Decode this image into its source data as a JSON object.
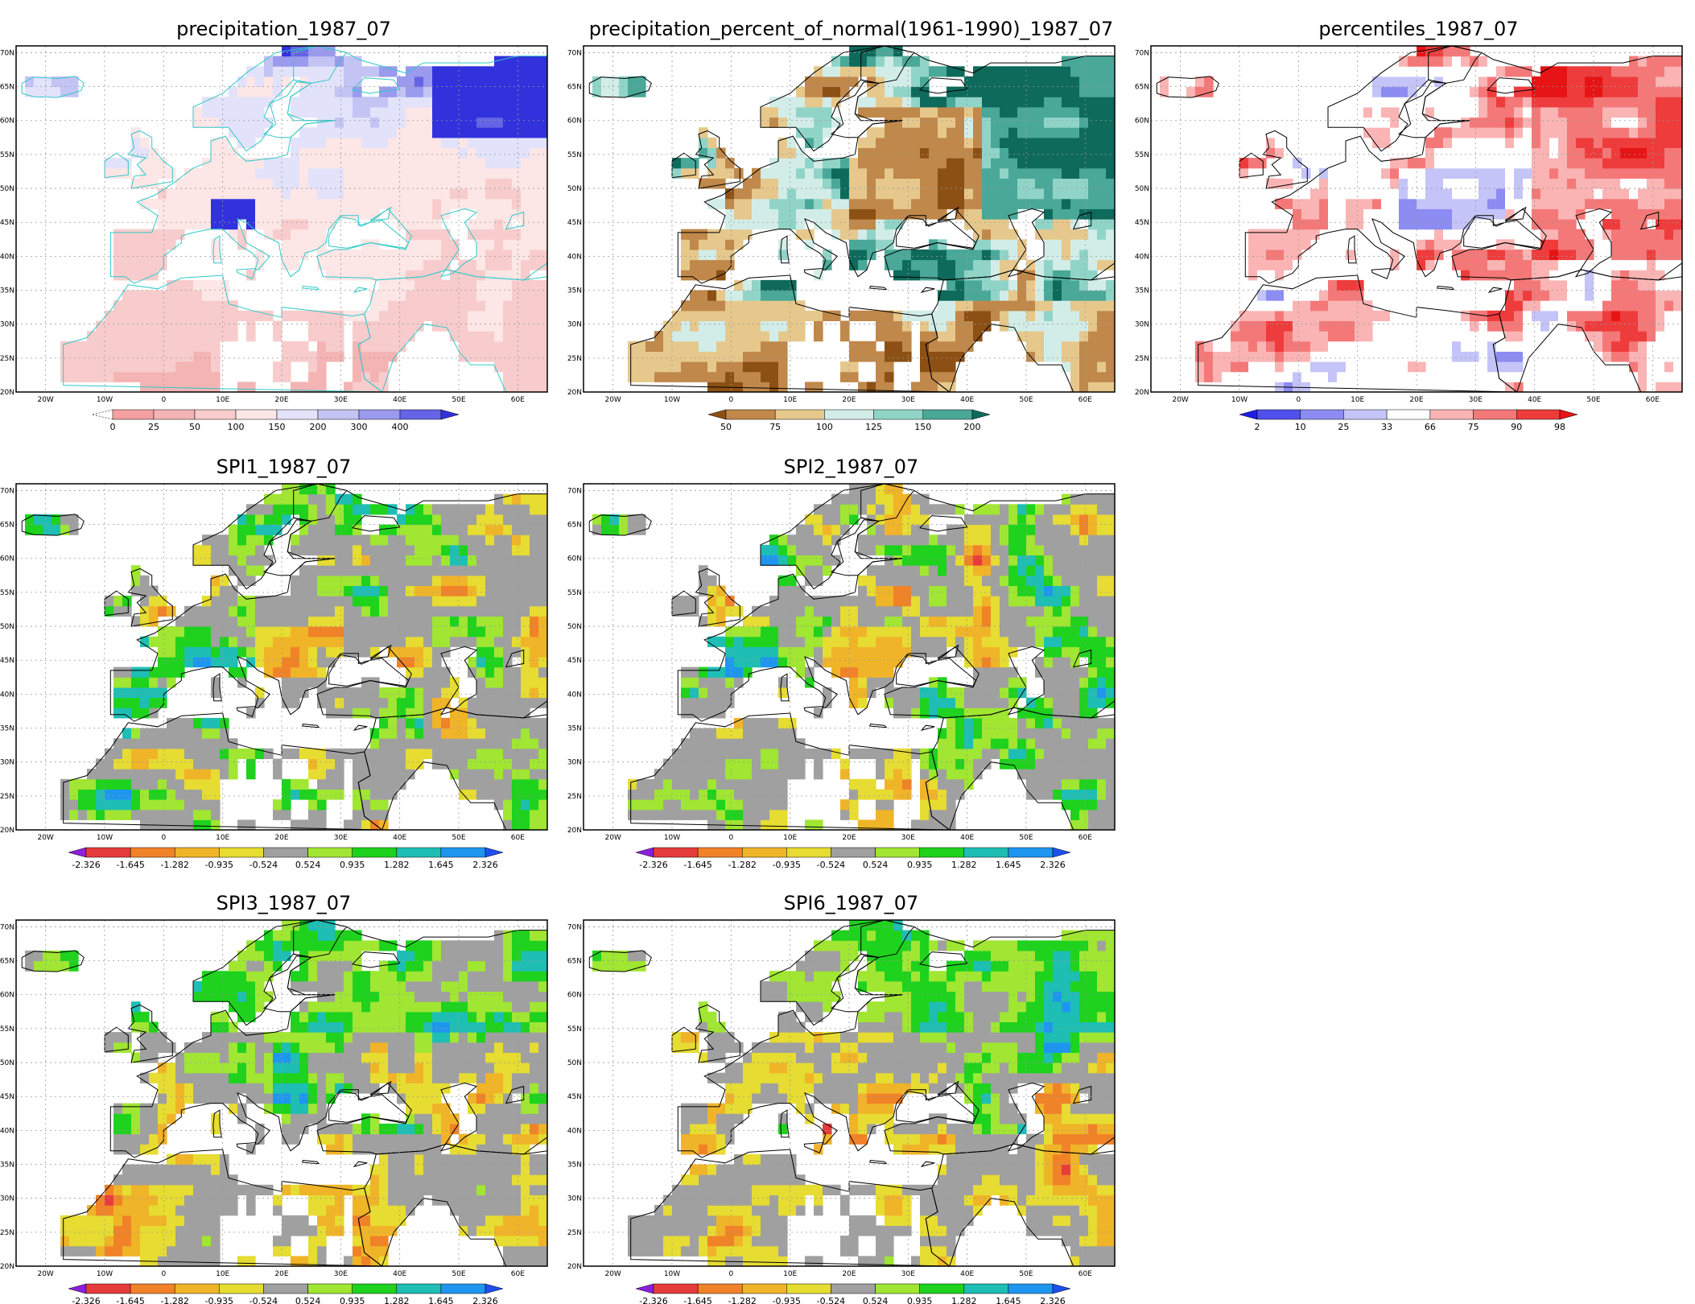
{
  "lon_labels": [
    "20W",
    "10W",
    "0",
    "10E",
    "20E",
    "30E",
    "40E",
    "50E",
    "60E"
  ],
  "lat_labels": [
    "70N",
    "65N",
    "60N",
    "55N",
    "50N",
    "45N",
    "40N",
    "35N",
    "30N",
    "25N",
    "20N"
  ],
  "panels": [
    {
      "id": "precip",
      "title": "precipitation_1987_07",
      "colors": [
        "#ffffff",
        "#f4b4b4",
        "#f8cccc",
        "#fce6e6",
        "#e2e2fa",
        "#c4c4f4",
        "#9a9aee",
        "#6464e6",
        "#3232dc"
      ],
      "colorbar": {
        "labels": [
          "0",
          "25",
          "50",
          "100",
          "150",
          "200",
          "300",
          "400"
        ],
        "colors": [
          "#f4a0a0",
          "#f4b4b4",
          "#f8cccc",
          "#fce6e6",
          "#e2e2fa",
          "#c4c4f4",
          "#9a9aee",
          "#6464e6",
          "#3232dc"
        ],
        "left_arrow": false,
        "right_arrow": true
      },
      "border_color": "#30c8c8",
      "field": {
        "type": "precip"
      }
    },
    {
      "id": "pct",
      "title": "precipitation_percent_of_normal(1961-1990)_1987_07",
      "colors": [
        "#8c5014",
        "#c0884a",
        "#e6c88c",
        "#d2ede8",
        "#90d4c8",
        "#4aa898",
        "#0e6a5a"
      ],
      "colorbar": {
        "labels": [
          "50",
          "75",
          "100",
          "125",
          "150",
          "200"
        ],
        "colors": [
          "#8c5014",
          "#c0884a",
          "#e6c88c",
          "#d2ede8",
          "#90d4c8",
          "#4aa898",
          "#0e6a5a"
        ],
        "left_arrow": true,
        "right_arrow": true
      },
      "border_color": "#000000",
      "field": {
        "type": "pct"
      }
    },
    {
      "id": "pctl",
      "title": "percentiles_1987_07",
      "colors": [
        "#1e1ee6",
        "#5050ec",
        "#8c8cf2",
        "#c4c4f8",
        "#ffffff",
        "#fab4b4",
        "#f47878",
        "#ee3c3c",
        "#e61414"
      ],
      "colorbar": {
        "labels": [
          "2",
          "10",
          "25",
          "33",
          "66",
          "75",
          "90",
          "98"
        ],
        "colors": [
          "#1e1ee6",
          "#5050ec",
          "#8c8cf2",
          "#c4c4f8",
          "#ffffff",
          "#fab4b4",
          "#f47878",
          "#ee3c3c",
          "#e61414"
        ],
        "left_arrow": true,
        "right_arrow": true
      },
      "border_color": "#000000",
      "field": {
        "type": "pctl"
      }
    },
    {
      "id": "spi1",
      "title": "SPI1_1987_07",
      "colors": [
        "#8c1ede",
        "#e63c3c",
        "#f08228",
        "#f0b428",
        "#e6dc32",
        "#a0a0a0",
        "#a0e632",
        "#1ed21e",
        "#1ebeb4",
        "#1e96f0",
        "#1e50f0"
      ],
      "colorbar": {
        "labels": [
          "-2.326",
          "-1.645",
          "-1.282",
          "-0.935",
          "-0.524",
          "0.524",
          "0.935",
          "1.282",
          "1.645",
          "2.326"
        ],
        "colors": [
          "#8c1ede",
          "#e63c3c",
          "#f08228",
          "#f0b428",
          "#e6dc32",
          "#a0a0a0",
          "#a0e632",
          "#1ed21e",
          "#1ebeb4",
          "#1e96f0",
          "#1e50f0"
        ],
        "left_arrow": true,
        "right_arrow": true
      },
      "border_color": "#000000",
      "field": {
        "type": "spi",
        "seed": 1
      }
    },
    {
      "id": "spi2",
      "title": "SPI2_1987_07",
      "colors": [
        "#8c1ede",
        "#e63c3c",
        "#f08228",
        "#f0b428",
        "#e6dc32",
        "#a0a0a0",
        "#a0e632",
        "#1ed21e",
        "#1ebeb4",
        "#1e96f0",
        "#1e50f0"
      ],
      "colorbar": {
        "labels": [
          "-2.326",
          "-1.645",
          "-1.282",
          "-0.935",
          "-0.524",
          "0.524",
          "0.935",
          "1.282",
          "1.645",
          "2.326"
        ],
        "colors": [
          "#8c1ede",
          "#e63c3c",
          "#f08228",
          "#f0b428",
          "#e6dc32",
          "#a0a0a0",
          "#a0e632",
          "#1ed21e",
          "#1ebeb4",
          "#1e96f0",
          "#1e50f0"
        ],
        "left_arrow": true,
        "right_arrow": true
      },
      "border_color": "#000000",
      "field": {
        "type": "spi",
        "seed": 2
      }
    },
    {
      "id": "spi3",
      "title": "SPI3_1987_07",
      "colors": [
        "#8c1ede",
        "#e63c3c",
        "#f08228",
        "#f0b428",
        "#e6dc32",
        "#a0a0a0",
        "#a0e632",
        "#1ed21e",
        "#1ebeb4",
        "#1e96f0",
        "#1e50f0"
      ],
      "colorbar": {
        "labels": [
          "-2.326",
          "-1.645",
          "-1.282",
          "-0.935",
          "-0.524",
          "0.524",
          "0.935",
          "1.282",
          "1.645",
          "2.326"
        ],
        "colors": [
          "#8c1ede",
          "#e63c3c",
          "#f08228",
          "#f0b428",
          "#e6dc32",
          "#a0a0a0",
          "#a0e632",
          "#1ed21e",
          "#1ebeb4",
          "#1e96f0",
          "#1e50f0"
        ],
        "left_arrow": true,
        "right_arrow": true
      },
      "border_color": "#000000",
      "field": {
        "type": "spi",
        "seed": 3
      }
    },
    {
      "id": "spi6",
      "title": "SPI6_1987_07",
      "colors": [
        "#8c1ede",
        "#e63c3c",
        "#f08228",
        "#f0b428",
        "#e6dc32",
        "#a0a0a0",
        "#a0e632",
        "#1ed21e",
        "#1ebeb4",
        "#1e96f0",
        "#1e50f0"
      ],
      "colorbar": {
        "labels": [
          "-2.326",
          "-1.645",
          "-1.282",
          "-0.935",
          "-0.524",
          "0.524",
          "0.935",
          "1.282",
          "1.645",
          "2.326"
        ],
        "colors": [
          "#8c1ede",
          "#e63c3c",
          "#f08228",
          "#f0b428",
          "#e6dc32",
          "#a0a0a0",
          "#a0e632",
          "#1ed21e",
          "#1ebeb4",
          "#1e96f0",
          "#1e50f0"
        ],
        "left_arrow": true,
        "right_arrow": true
      },
      "border_color": "#000000",
      "field": {
        "type": "spi",
        "seed": 6
      }
    }
  ]
}
